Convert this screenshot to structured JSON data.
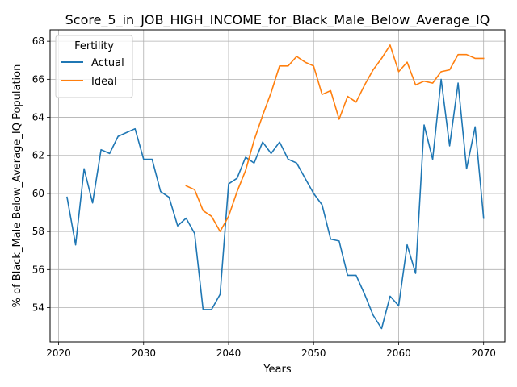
{
  "chart_data": {
    "type": "line",
    "title": "Score_5_in_JOB_HIGH_INCOME_for_Black_Male_Below_Average_IQ",
    "xlabel": "Years",
    "ylabel": "% of Black_Male Below_Average_IQ Population",
    "xlim": [
      2019,
      2072.5
    ],
    "ylim": [
      52.2,
      68.6
    ],
    "xticks": [
      2020,
      2030,
      2040,
      2050,
      2060,
      2070
    ],
    "yticks": [
      54,
      56,
      58,
      60,
      62,
      64,
      66,
      68
    ],
    "grid": true,
    "legend": {
      "title": "Fertility",
      "placement": "top-left"
    },
    "series": [
      {
        "name": "Actual",
        "color": "#1f77b4",
        "x": [
          2021,
          2022,
          2023,
          2024,
          2025,
          2026,
          2027,
          2028,
          2029,
          2030,
          2031,
          2032,
          2033,
          2034,
          2035,
          2036,
          2037,
          2038,
          2039,
          2040,
          2041,
          2042,
          2043,
          2044,
          2045,
          2046,
          2047,
          2048,
          2049,
          2050,
          2051,
          2052,
          2053,
          2054,
          2055,
          2056,
          2057,
          2058,
          2059,
          2060,
          2061,
          2062,
          2063,
          2064,
          2065,
          2066,
          2067,
          2068,
          2069,
          2070
        ],
        "values": [
          59.8,
          57.3,
          61.3,
          59.5,
          62.3,
          62.1,
          63.0,
          63.2,
          63.4,
          61.8,
          61.8,
          60.1,
          59.8,
          58.3,
          58.7,
          57.9,
          53.9,
          53.9,
          54.7,
          60.5,
          60.8,
          61.9,
          61.6,
          62.7,
          62.1,
          62.7,
          61.8,
          61.6,
          60.8,
          60.0,
          59.4,
          57.6,
          57.5,
          55.7,
          55.7,
          54.7,
          53.6,
          52.9,
          54.6,
          54.1,
          57.3,
          55.8,
          63.6,
          61.8,
          66.0,
          62.5,
          65.8,
          61.3,
          63.5,
          58.7
        ]
      },
      {
        "name": "Ideal",
        "color": "#ff7f0e",
        "x": [
          2035,
          2036,
          2037,
          2038,
          2039,
          2040,
          2041,
          2042,
          2043,
          2044,
          2045,
          2046,
          2047,
          2048,
          2049,
          2050,
          2051,
          2052,
          2053,
          2054,
          2055,
          2056,
          2057,
          2058,
          2059,
          2060,
          2061,
          2062,
          2063,
          2064,
          2065,
          2066,
          2067,
          2068,
          2069,
          2070
        ],
        "values": [
          60.4,
          60.2,
          59.1,
          58.8,
          58.0,
          58.8,
          60.1,
          61.2,
          62.8,
          64.1,
          65.3,
          66.7,
          66.7,
          67.2,
          66.9,
          66.7,
          65.2,
          65.4,
          63.9,
          65.1,
          64.8,
          65.7,
          66.5,
          67.1,
          67.8,
          66.4,
          66.9,
          65.7,
          65.9,
          65.8,
          66.4,
          66.5,
          67.3,
          67.3,
          67.1,
          67.1
        ]
      }
    ]
  }
}
